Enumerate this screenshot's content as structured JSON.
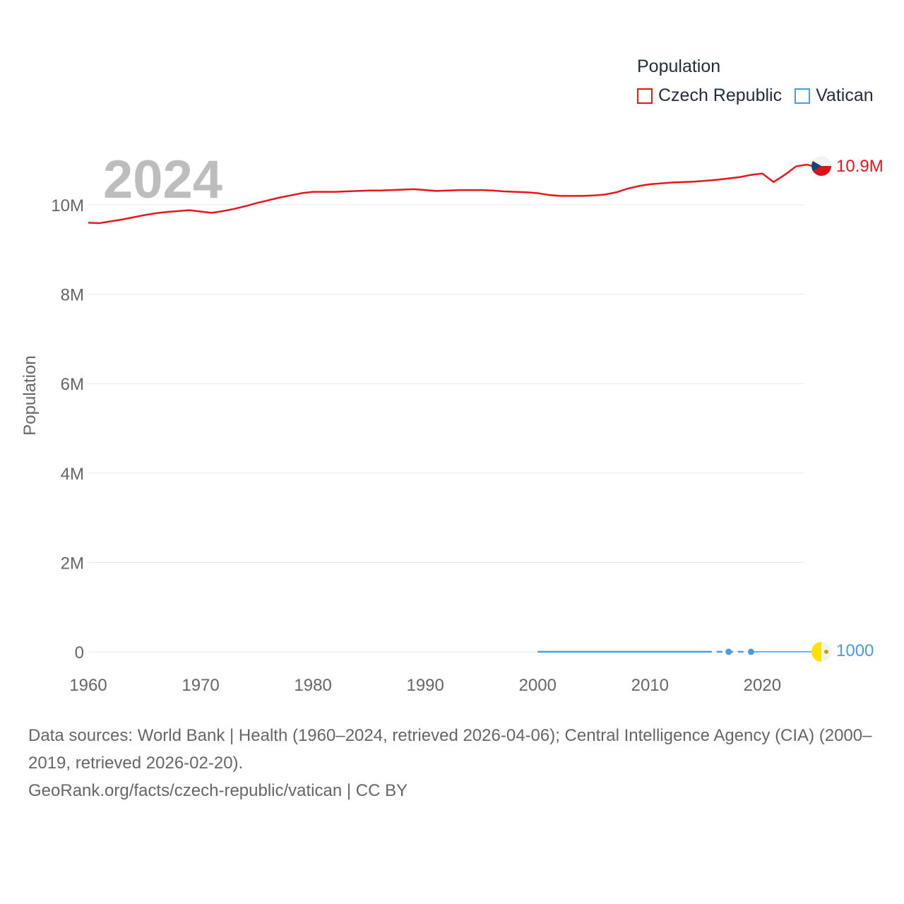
{
  "chart_data": {
    "type": "line",
    "year_label": "2024",
    "ylabel": "Population",
    "legend_title": "Population",
    "xlim": [
      1960,
      2025
    ],
    "ylim": [
      0,
      11500000
    ],
    "x_ticks": [
      1960,
      1970,
      1980,
      1990,
      2000,
      2010,
      2020
    ],
    "x_tick_labels": [
      "1960",
      "1970",
      "1980",
      "1990",
      "2000",
      "2010",
      "2020"
    ],
    "y_ticks": [
      0,
      2000000,
      4000000,
      6000000,
      8000000,
      10000000
    ],
    "y_tick_labels": [
      "0",
      "2M",
      "4M",
      "6M",
      "8M",
      "10M"
    ],
    "series": [
      {
        "name": "Czech Republic",
        "color": "#e8161b",
        "end_label": "10.9M",
        "points": [
          [
            1960,
            9600000
          ],
          [
            1961,
            9590000
          ],
          [
            1962,
            9630000
          ],
          [
            1963,
            9670000
          ],
          [
            1964,
            9720000
          ],
          [
            1965,
            9770000
          ],
          [
            1966,
            9810000
          ],
          [
            1967,
            9840000
          ],
          [
            1968,
            9860000
          ],
          [
            1969,
            9880000
          ],
          [
            1970,
            9850000
          ],
          [
            1971,
            9820000
          ],
          [
            1972,
            9860000
          ],
          [
            1973,
            9910000
          ],
          [
            1974,
            9970000
          ],
          [
            1975,
            10040000
          ],
          [
            1976,
            10100000
          ],
          [
            1977,
            10160000
          ],
          [
            1978,
            10210000
          ],
          [
            1979,
            10260000
          ],
          [
            1980,
            10290000
          ],
          [
            1981,
            10290000
          ],
          [
            1982,
            10290000
          ],
          [
            1983,
            10300000
          ],
          [
            1984,
            10310000
          ],
          [
            1985,
            10320000
          ],
          [
            1986,
            10320000
          ],
          [
            1987,
            10330000
          ],
          [
            1988,
            10340000
          ],
          [
            1989,
            10350000
          ],
          [
            1990,
            10330000
          ],
          [
            1991,
            10310000
          ],
          [
            1992,
            10320000
          ],
          [
            1993,
            10330000
          ],
          [
            1994,
            10330000
          ],
          [
            1995,
            10330000
          ],
          [
            1996,
            10320000
          ],
          [
            1997,
            10300000
          ],
          [
            1998,
            10290000
          ],
          [
            1999,
            10280000
          ],
          [
            2000,
            10260000
          ],
          [
            2001,
            10220000
          ],
          [
            2002,
            10200000
          ],
          [
            2003,
            10200000
          ],
          [
            2004,
            10200000
          ],
          [
            2005,
            10210000
          ],
          [
            2006,
            10230000
          ],
          [
            2007,
            10280000
          ],
          [
            2008,
            10360000
          ],
          [
            2009,
            10420000
          ],
          [
            2010,
            10460000
          ],
          [
            2011,
            10480000
          ],
          [
            2012,
            10500000
          ],
          [
            2013,
            10510000
          ],
          [
            2014,
            10520000
          ],
          [
            2015,
            10540000
          ],
          [
            2016,
            10560000
          ],
          [
            2017,
            10590000
          ],
          [
            2018,
            10620000
          ],
          [
            2019,
            10670000
          ],
          [
            2020,
            10700000
          ],
          [
            2021,
            10510000
          ],
          [
            2022,
            10670000
          ],
          [
            2023,
            10860000
          ],
          [
            2024,
            10900000
          ]
        ]
      },
      {
        "name": "Vatican",
        "color": "#4c9be3",
        "end_label": "1000",
        "points": [
          [
            2000,
            1000
          ],
          [
            2015,
            1000
          ],
          [
            2017,
            1000
          ],
          [
            2019,
            1000
          ],
          [
            2024,
            1000
          ]
        ],
        "markers": [
          2017,
          2019
        ],
        "dashed_ranges": [
          [
            2015,
            2019
          ]
        ]
      }
    ]
  },
  "footer": {
    "sources": "Data sources: World Bank | Health (1960–2024, retrieved 2026-04-06); Central Intelligence Agency (CIA) (2000–2019, retrieved 2026-02-20).",
    "credit": "GeoRank.org/facts/czech-republic/vatican | CC BY"
  }
}
